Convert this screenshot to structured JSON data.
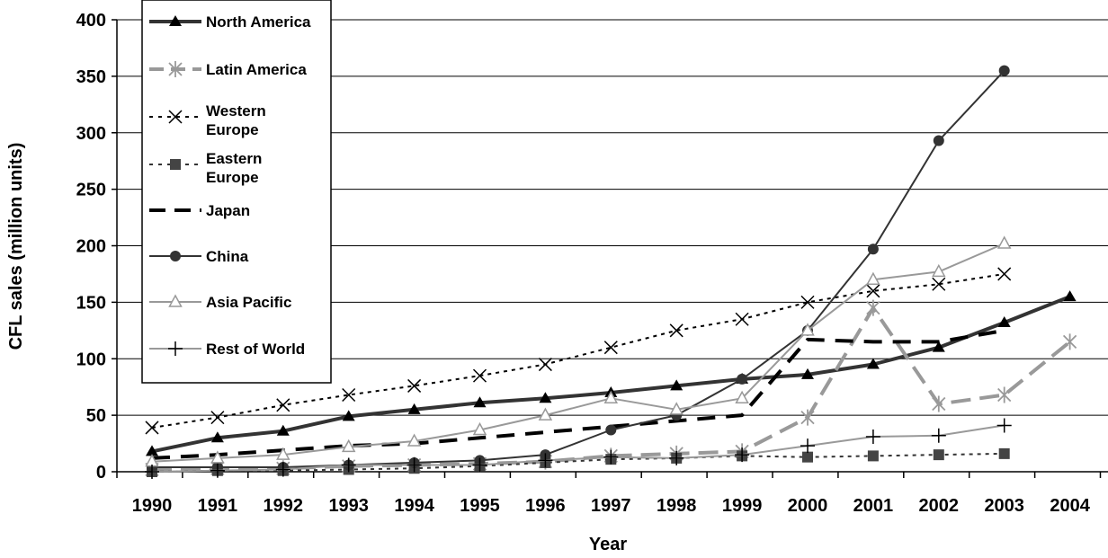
{
  "chart_data": {
    "type": "line",
    "xlabel": "Year",
    "ylabel": "CFL sales (million units)",
    "ylim": [
      0,
      400
    ],
    "yticks": [
      "0",
      "50",
      "100",
      "150",
      "200",
      "250",
      "300",
      "350",
      "400"
    ],
    "categories": [
      "1990",
      "1991",
      "1992",
      "1993",
      "1994",
      "1995",
      "1996",
      "1997",
      "1998",
      "1999",
      "2000",
      "2001",
      "2002",
      "2003",
      "2004"
    ],
    "grid": "horizontal",
    "legend_position": "top-left",
    "series": [
      {
        "name": "North America",
        "color": "#333333",
        "style": "solid",
        "width": 4,
        "marker": "triangle-filled",
        "values": [
          18,
          30,
          36,
          49,
          55,
          61,
          65,
          70,
          76,
          82,
          86,
          95,
          110,
          132,
          155
        ]
      },
      {
        "name": "Latin America",
        "color": "#999999",
        "style": "longdash",
        "width": 4,
        "marker": "asterisk",
        "values": [
          2,
          3,
          3,
          5,
          6,
          7,
          9,
          14,
          16,
          18,
          48,
          145,
          60,
          68,
          115
        ]
      },
      {
        "name": "Western Europe",
        "color": "#000000",
        "style": "dotted",
        "width": 2,
        "marker": "x",
        "values": [
          39,
          48,
          59,
          68,
          76,
          85,
          95,
          110,
          125,
          135,
          150,
          160,
          166,
          175,
          null
        ]
      },
      {
        "name": "Eastern Europe",
        "color": "#333333",
        "style": "dotted",
        "width": 2,
        "marker": "square",
        "values": [
          0,
          1,
          1,
          2,
          3,
          5,
          8,
          11,
          12,
          14,
          13,
          14,
          15,
          16,
          null
        ]
      },
      {
        "name": "Japan",
        "color": "#000000",
        "style": "dash",
        "width": 4,
        "marker": "none",
        "values": [
          12,
          15,
          19,
          23,
          25,
          30,
          35,
          40,
          45,
          50,
          117,
          115,
          115,
          125,
          null
        ]
      },
      {
        "name": "China",
        "color": "#333333",
        "style": "solid",
        "width": 2,
        "marker": "circle",
        "values": [
          4,
          4,
          4,
          6,
          8,
          10,
          15,
          37,
          50,
          82,
          125,
          197,
          293,
          355,
          null
        ]
      },
      {
        "name": "Asia Pacific",
        "color": "#999999",
        "style": "solid",
        "width": 2,
        "marker": "triangle-open",
        "values": [
          9,
          12,
          15,
          22,
          27,
          37,
          50,
          65,
          55,
          65,
          125,
          170,
          177,
          202,
          null
        ]
      },
      {
        "name": "Rest of World",
        "color": "#999999",
        "style": "solid",
        "width": 2,
        "marker": "plus",
        "values": [
          0,
          1,
          2,
          6,
          6,
          6,
          10,
          13,
          12,
          15,
          23,
          31,
          32,
          41,
          null
        ]
      }
    ]
  }
}
